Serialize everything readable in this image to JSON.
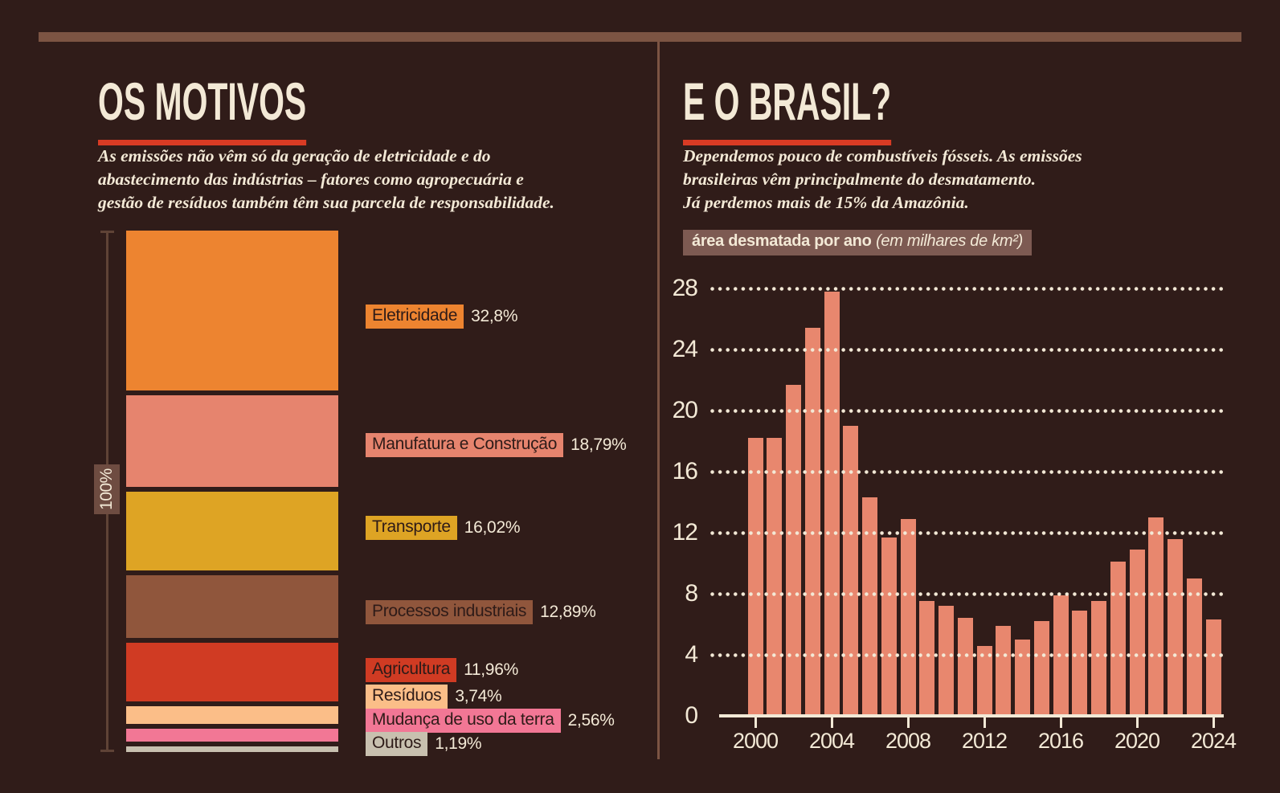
{
  "page": {
    "background": "#301C19",
    "cream": "#F3E9D6",
    "accent_red": "#D93B24",
    "band_color": "#7C5443"
  },
  "left_panel": {
    "title": "OS MOTIVOS",
    "intro_lines": [
      "As emissões não vêm só da geração de eletricidade e do",
      "abastecimento das indústrias – fatores como agropecuária e",
      "gestão de resíduos também têm sua parcela de responsabilidade."
    ],
    "axis_label": "100%"
  },
  "right_panel": {
    "title": "E O BRASIL?",
    "intro_lines": [
      "Dependemos pouco de combustíveis fósseis. As emissões",
      "brasileiras vêm principalmente do desmatamento.",
      "Já perdemos mais de 15% da Amazônia."
    ],
    "chart_label_bold": "área desmatada por ano",
    "chart_label_italic": "(em milhares de km²)"
  },
  "chart_data": [
    {
      "type": "bar",
      "subtype": "stacked-percentage-column",
      "title": "OS MOTIVOS",
      "axis_label": "100%",
      "unit": "%",
      "categories": [
        "Eletricidade",
        "Manufatura e Construção",
        "Transporte",
        "Processos industriais",
        "Agricultura",
        "Resíduos",
        "Mudança de uso da terra",
        "Outros"
      ],
      "values": [
        32.8,
        18.79,
        16.02,
        12.89,
        11.96,
        3.74,
        2.56,
        1.19
      ],
      "value_labels": [
        "32,8%",
        "18,79%",
        "16,02%",
        "12,89%",
        "11,96%",
        "3,74%",
        "2,56%",
        "1,19%"
      ],
      "colors": [
        "#ED8430",
        "#E6846E",
        "#DEA424",
        "#90563C",
        "#D03B23",
        "#FBBE88",
        "#F27795",
        "#C8C0AF"
      ],
      "legend_position": "right"
    },
    {
      "type": "bar",
      "title": "área desmatada por ano (em milhares de km²)",
      "xlabel": "",
      "ylabel": "milhares de km²",
      "x": [
        2000,
        2001,
        2002,
        2003,
        2004,
        2005,
        2006,
        2007,
        2008,
        2009,
        2010,
        2011,
        2012,
        2013,
        2014,
        2015,
        2016,
        2017,
        2018,
        2019,
        2020,
        2021,
        2022,
        2023,
        2024
      ],
      "values": [
        18.2,
        18.2,
        21.7,
        25.4,
        27.8,
        19.0,
        14.3,
        11.7,
        12.9,
        7.5,
        7.2,
        6.4,
        4.6,
        5.9,
        5.0,
        6.2,
        7.9,
        6.9,
        7.5,
        10.1,
        10.9,
        13.0,
        11.6,
        9.0,
        6.3
      ],
      "ylim": [
        0,
        28
      ],
      "yticks": [
        0,
        4,
        8,
        12,
        16,
        20,
        24,
        28
      ],
      "xticks": [
        2000,
        2004,
        2008,
        2012,
        2016,
        2020,
        2024
      ],
      "bar_color": "#E8876E",
      "grid": "dotted-horizontal"
    }
  ]
}
